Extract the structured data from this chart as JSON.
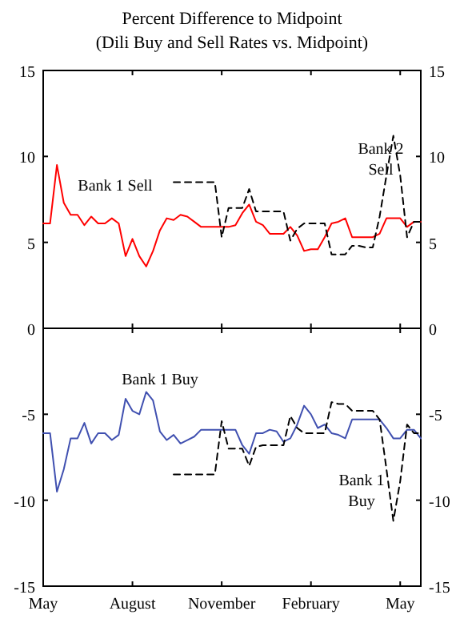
{
  "chart_data": [
    {
      "type": "line",
      "title": "Percent Difference to Midpoint",
      "subtitle": "(Dili Buy and  Sell Rates vs. Midpoint)",
      "tick_labels": "y",
      "categories": [
        null,
        null,
        null,
        null,
        null,
        null,
        null,
        null,
        null,
        null,
        null,
        null,
        null,
        null,
        null,
        null,
        null,
        null,
        null,
        null,
        null,
        null,
        null,
        null,
        null,
        null,
        null,
        null,
        null,
        null,
        null,
        null,
        null,
        null,
        null,
        null,
        null,
        null,
        null,
        null,
        null,
        null,
        null,
        null,
        null,
        null,
        null,
        null,
        null,
        null,
        null,
        null,
        null,
        null,
        null,
        null
      ],
      "ylim": [
        0,
        15
      ],
      "yticks": [
        0,
        5,
        10,
        15
      ],
      "y2lim": [
        0,
        15
      ],
      "y2ticks": [
        0,
        5,
        10,
        15
      ],
      "series": [
        {
          "name": "Bank 1 Sell",
          "color": "#ff0000",
          "line_style": "solid",
          "values": [
            6.1,
            6.1,
            9.5,
            7.3,
            6.6,
            6.6,
            6.0,
            6.5,
            6.1,
            6.1,
            6.4,
            6.1,
            4.2,
            5.2,
            4.2,
            3.6,
            4.5,
            5.7,
            6.4,
            6.3,
            6.6,
            6.5,
            6.2,
            5.9,
            5.9,
            5.9,
            5.9,
            5.9,
            6.0,
            6.7,
            7.2,
            6.2,
            6.0,
            5.5,
            5.5,
            5.5,
            5.9,
            5.4,
            4.5,
            4.6,
            4.6,
            5.3,
            6.1,
            6.2,
            6.4,
            5.3,
            5.3,
            5.3,
            5.3,
            5.5,
            6.4,
            6.4,
            6.4,
            5.9,
            6.2,
            6.2
          ]
        },
        {
          "name": "Bank 2 Sell",
          "color": "#000000",
          "line_style": "dashed",
          "values": [
            null,
            null,
            null,
            null,
            null,
            null,
            null,
            null,
            null,
            null,
            null,
            null,
            null,
            null,
            null,
            null,
            null,
            null,
            null,
            8.5,
            8.5,
            8.5,
            8.5,
            8.5,
            8.5,
            8.5,
            5.3,
            7.0,
            7.0,
            7.0,
            8.1,
            6.8,
            6.8,
            6.8,
            6.8,
            6.8,
            5.1,
            5.8,
            6.1,
            6.1,
            6.1,
            6.1,
            4.3,
            4.3,
            4.3,
            4.8,
            4.8,
            4.7,
            4.7,
            6.5,
            8.9,
            11.2,
            8.9,
            5.3,
            6.2,
            6.2
          ]
        }
      ]
    },
    {
      "type": "line",
      "categories": [
        "May",
        null,
        null,
        null,
        null,
        null,
        null,
        null,
        null,
        null,
        null,
        null,
        null,
        "August",
        null,
        null,
        null,
        null,
        null,
        null,
        null,
        null,
        null,
        null,
        null,
        null,
        "November",
        null,
        null,
        null,
        null,
        null,
        null,
        null,
        null,
        null,
        null,
        null,
        null,
        "February",
        null,
        null,
        null,
        null,
        null,
        null,
        null,
        null,
        null,
        null,
        null,
        null,
        "May",
        null,
        null,
        null
      ],
      "ylim": [
        -15,
        0
      ],
      "yticks": [
        -15,
        -10,
        -5
      ],
      "y2lim": [
        -15,
        0
      ],
      "y2ticks": [
        -15,
        -10,
        -5
      ],
      "series": [
        {
          "name": "Bank 1 Buy",
          "color": "#4050b0",
          "line_style": "solid",
          "values": [
            -6.1,
            -6.1,
            -9.5,
            -8.2,
            -6.4,
            -6.4,
            -5.5,
            -6.7,
            -6.1,
            -6.1,
            -6.5,
            -6.2,
            -4.1,
            -4.8,
            -5.0,
            -3.7,
            -4.2,
            -6.0,
            -6.5,
            -6.2,
            -6.7,
            -6.5,
            -6.3,
            -5.9,
            -5.9,
            -5.9,
            -5.9,
            -5.9,
            -5.9,
            -6.8,
            -7.3,
            -6.1,
            -6.1,
            -5.9,
            -6.0,
            -6.6,
            -6.4,
            -5.6,
            -4.5,
            -5.0,
            -5.8,
            -5.6,
            -6.1,
            -6.2,
            -6.4,
            -5.3,
            -5.3,
            -5.3,
            -5.3,
            -5.3,
            -5.8,
            -6.4,
            -6.4,
            -5.9,
            -5.9,
            -6.4
          ]
        },
        {
          "name": "Bank 1 Buy",
          "color": "#000000",
          "line_style": "dashed",
          "values": [
            null,
            null,
            null,
            null,
            null,
            null,
            null,
            null,
            null,
            null,
            null,
            null,
            null,
            null,
            null,
            null,
            null,
            null,
            null,
            -8.5,
            -8.5,
            -8.5,
            -8.5,
            -8.5,
            -8.5,
            -8.5,
            -5.4,
            -7.0,
            -7.0,
            -7.0,
            -8.0,
            -6.9,
            -6.8,
            -6.8,
            -6.8,
            -6.8,
            -5.1,
            -5.8,
            -6.1,
            -6.1,
            -6.1,
            -6.1,
            -4.3,
            -4.4,
            -4.4,
            -4.8,
            -4.8,
            -4.8,
            -4.8,
            -5.3,
            -8.2,
            -11.2,
            -8.9,
            -5.6,
            -6.1,
            -6.1
          ]
        }
      ]
    }
  ]
}
